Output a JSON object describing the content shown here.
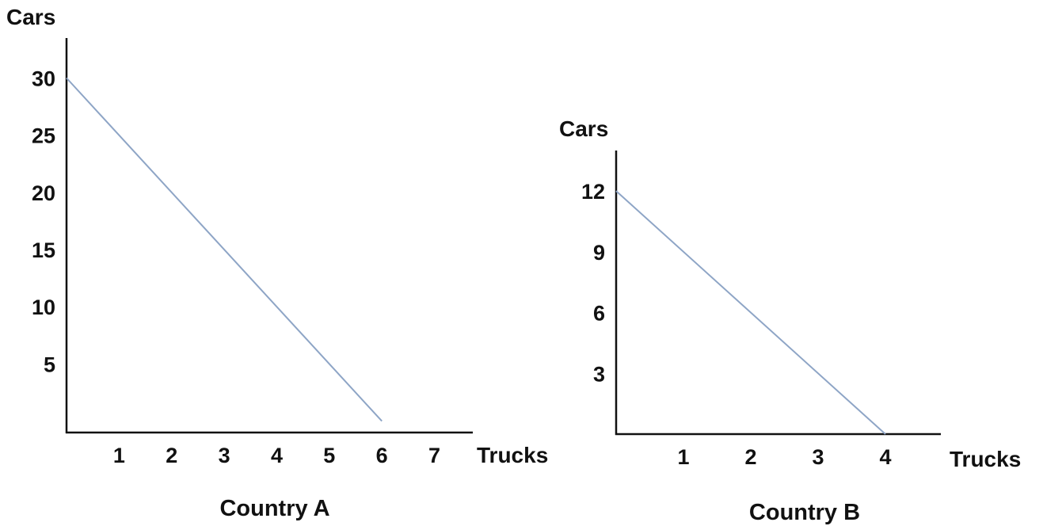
{
  "chart_data": [
    {
      "type": "line",
      "title": "Country A",
      "xlabel": "Trucks",
      "ylabel": "Cars",
      "xticks": [
        "1",
        "2",
        "3",
        "4",
        "5",
        "6",
        "7"
      ],
      "yticks": [
        "5",
        "10",
        "15",
        "20",
        "25",
        "30"
      ],
      "xlim": [
        0,
        7.7
      ],
      "ylim": [
        -1,
        33.5
      ],
      "grid": false,
      "series": [
        {
          "x": [
            0,
            6
          ],
          "y": [
            30,
            0
          ]
        }
      ],
      "colors": {
        "line": "#8EA5C6",
        "axis": "#111111",
        "text": "#111111"
      }
    },
    {
      "type": "line",
      "title": "Country B",
      "xlabel": "Trucks",
      "ylabel": "Cars",
      "xticks": [
        "1",
        "2",
        "3",
        "4"
      ],
      "yticks": [
        "3",
        "6",
        "9",
        "12"
      ],
      "xlim": [
        0,
        4.8
      ],
      "ylim": [
        0,
        14
      ],
      "grid": false,
      "series": [
        {
          "x": [
            0,
            4
          ],
          "y": [
            12,
            0
          ]
        }
      ],
      "colors": {
        "line": "#8EA5C6",
        "axis": "#111111",
        "text": "#111111"
      }
    }
  ]
}
